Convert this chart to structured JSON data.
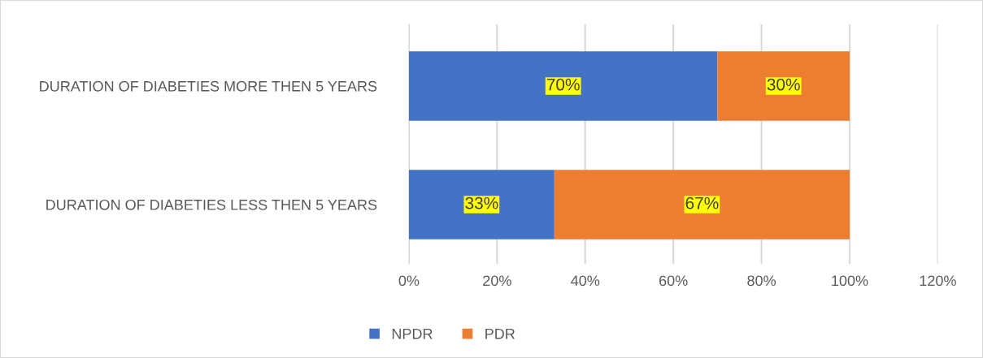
{
  "chart_data": {
    "type": "bar",
    "orientation": "horizontal",
    "stacked": true,
    "categories": [
      "DURATION OF DIABETIES MORE THEN 5 YEARS",
      "DURATION OF DIABETIES LESS THEN 5 YEARS"
    ],
    "series": [
      {
        "name": "NPDR",
        "color": "#4472c4",
        "values": [
          70,
          33
        ],
        "value_labels": [
          "70%",
          "33%"
        ]
      },
      {
        "name": "PDR",
        "color": "#ed7d31",
        "values": [
          30,
          67
        ],
        "value_labels": [
          "30%",
          "67%"
        ]
      }
    ],
    "xlim": [
      0,
      120
    ],
    "xticks": [
      {
        "value": 0,
        "label": "0%"
      },
      {
        "value": 20,
        "label": "20%"
      },
      {
        "value": 40,
        "label": "40%"
      },
      {
        "value": 60,
        "label": "60%"
      },
      {
        "value": 80,
        "label": "80%"
      },
      {
        "value": 100,
        "label": "100%"
      },
      {
        "value": 120,
        "label": "120%"
      }
    ],
    "grid": "x",
    "legend": "bottom"
  }
}
